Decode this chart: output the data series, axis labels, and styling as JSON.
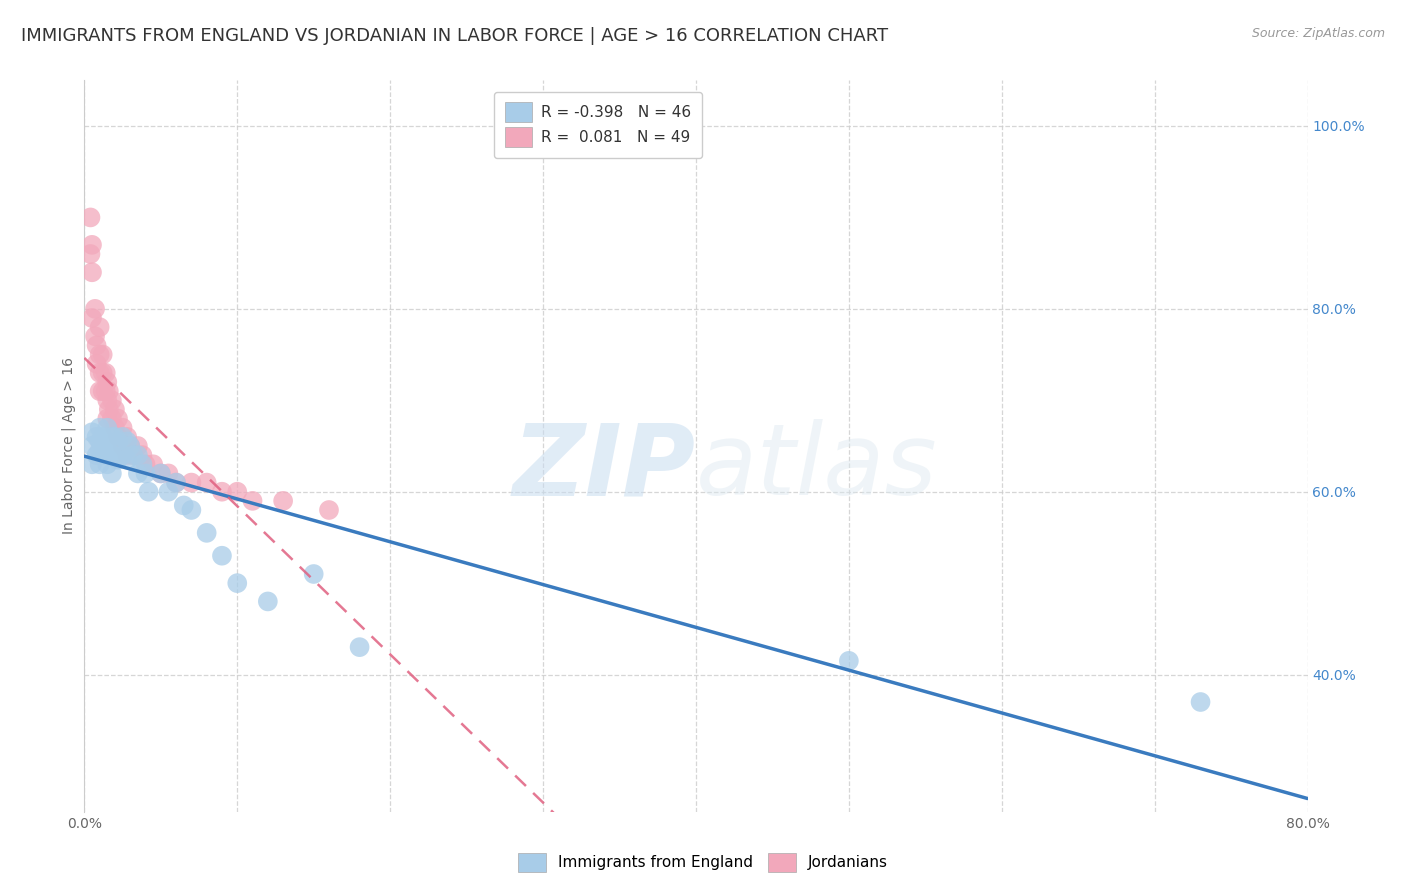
{
  "title": "IMMIGRANTS FROM ENGLAND VS JORDANIAN IN LABOR FORCE | AGE > 16 CORRELATION CHART",
  "source": "Source: ZipAtlas.com",
  "ylabel": "In Labor Force | Age > 16",
  "xlim": [
    0.0,
    0.8
  ],
  "ylim": [
    0.25,
    1.05
  ],
  "x_ticks": [
    0.0,
    0.1,
    0.2,
    0.3,
    0.4,
    0.5,
    0.6,
    0.7,
    0.8
  ],
  "x_tick_labels": [
    "0.0%",
    "",
    "",
    "",
    "",
    "",
    "",
    "",
    "80.0%"
  ],
  "y_ticks": [
    0.4,
    0.6,
    0.8,
    1.0
  ],
  "y_tick_labels": [
    "40.0%",
    "60.0%",
    "80.0%",
    "100.0%"
  ],
  "england_R": -0.398,
  "england_N": 46,
  "jordan_R": 0.081,
  "jordan_N": 49,
  "england_color": "#a8cce8",
  "england_line_color": "#3a7bbf",
  "jordan_color": "#f2a8bb",
  "jordan_line_color": "#e06080",
  "england_scatter_x": [
    0.005,
    0.005,
    0.005,
    0.008,
    0.008,
    0.01,
    0.01,
    0.01,
    0.01,
    0.012,
    0.012,
    0.015,
    0.015,
    0.015,
    0.015,
    0.018,
    0.018,
    0.018,
    0.02,
    0.02,
    0.022,
    0.022,
    0.025,
    0.025,
    0.028,
    0.028,
    0.03,
    0.032,
    0.035,
    0.035,
    0.038,
    0.04,
    0.042,
    0.05,
    0.055,
    0.06,
    0.065,
    0.07,
    0.08,
    0.09,
    0.1,
    0.12,
    0.15,
    0.18,
    0.5,
    0.73
  ],
  "england_scatter_y": [
    0.665,
    0.65,
    0.63,
    0.66,
    0.64,
    0.67,
    0.655,
    0.645,
    0.63,
    0.66,
    0.64,
    0.67,
    0.655,
    0.645,
    0.63,
    0.66,
    0.64,
    0.62,
    0.66,
    0.64,
    0.655,
    0.635,
    0.66,
    0.64,
    0.655,
    0.635,
    0.65,
    0.64,
    0.64,
    0.62,
    0.63,
    0.62,
    0.6,
    0.62,
    0.6,
    0.61,
    0.585,
    0.58,
    0.555,
    0.53,
    0.5,
    0.48,
    0.51,
    0.43,
    0.415,
    0.37
  ],
  "jordan_scatter_x": [
    0.004,
    0.004,
    0.005,
    0.005,
    0.005,
    0.007,
    0.007,
    0.008,
    0.008,
    0.01,
    0.01,
    0.01,
    0.01,
    0.012,
    0.012,
    0.012,
    0.014,
    0.014,
    0.015,
    0.015,
    0.015,
    0.016,
    0.016,
    0.018,
    0.018,
    0.02,
    0.02,
    0.022,
    0.022,
    0.025,
    0.025,
    0.028,
    0.028,
    0.03,
    0.032,
    0.035,
    0.038,
    0.04,
    0.045,
    0.05,
    0.055,
    0.06,
    0.07,
    0.08,
    0.09,
    0.1,
    0.11,
    0.13,
    0.16
  ],
  "jordan_scatter_y": [
    0.9,
    0.86,
    0.87,
    0.84,
    0.79,
    0.8,
    0.77,
    0.76,
    0.74,
    0.78,
    0.75,
    0.73,
    0.71,
    0.75,
    0.73,
    0.71,
    0.73,
    0.71,
    0.72,
    0.7,
    0.68,
    0.71,
    0.69,
    0.7,
    0.68,
    0.69,
    0.67,
    0.68,
    0.66,
    0.67,
    0.65,
    0.66,
    0.64,
    0.65,
    0.64,
    0.65,
    0.64,
    0.63,
    0.63,
    0.62,
    0.62,
    0.61,
    0.61,
    0.61,
    0.6,
    0.6,
    0.59,
    0.59,
    0.58
  ],
  "background_color": "#ffffff",
  "grid_color": "#cccccc",
  "legend_label_england": "Immigrants from England",
  "legend_label_jordan": "Jordanians",
  "watermark_zip": "ZIP",
  "watermark_atlas": "atlas",
  "title_fontsize": 13,
  "axis_label_fontsize": 10,
  "tick_fontsize": 10,
  "legend_fontsize": 11
}
